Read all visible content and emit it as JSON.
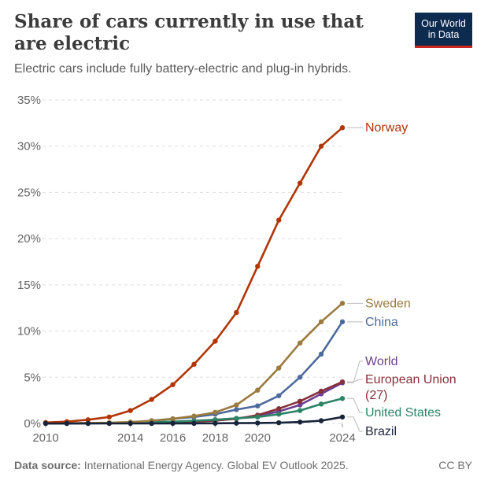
{
  "header": {
    "title": "Share of cars currently in use that are electric",
    "subtitle": "Electric cars include fully battery-electric and plug-in hybrids.",
    "logo_line1": "Our World",
    "logo_line2": "in Data"
  },
  "footer": {
    "source_label": "Data source:",
    "source_text": " International Energy Agency. Global EV Outlook 2025.",
    "license": "CC BY"
  },
  "colors": {
    "Norway": "#b13507",
    "Sweden": "#9a7a3f",
    "China": "#4c6a9c",
    "World": "#6d3e91",
    "European Union (27)": "#883039",
    "United States": "#2c8465",
    "Brazil": "#18243c",
    "grid": "#dddddd",
    "axis_text": "#666666"
  },
  "chart_data": {
    "type": "line",
    "title": "Share of cars currently in use that are electric",
    "subtitle": "Electric cars include fully battery-electric and plug-in hybrids.",
    "xlabel": "",
    "ylabel": "",
    "x_ticks": [
      "2010",
      "2014",
      "2016",
      "2018",
      "2020",
      "2024"
    ],
    "y_ticks": [
      "0%",
      "5%",
      "10%",
      "15%",
      "20%",
      "25%",
      "30%",
      "35%"
    ],
    "xlim": [
      2010,
      2024
    ],
    "ylim": [
      0,
      35
    ],
    "grid": "horizontal dashed",
    "legend": "right (labels at line ends)",
    "x": [
      2010,
      2011,
      2012,
      2013,
      2014,
      2015,
      2016,
      2017,
      2018,
      2019,
      2020,
      2021,
      2022,
      2023,
      2024
    ],
    "series": [
      {
        "name": "Norway",
        "values": [
          0.1,
          0.2,
          0.4,
          0.7,
          1.4,
          2.6,
          4.2,
          6.4,
          8.9,
          12,
          17,
          22,
          26,
          30,
          32
        ]
      },
      {
        "name": "Sweden",
        "values": [
          0.02,
          0.03,
          0.05,
          0.08,
          0.15,
          0.3,
          0.5,
          0.8,
          1.2,
          2,
          3.6,
          6,
          8.7,
          11,
          13
        ]
      },
      {
        "name": "China",
        "values": [
          0.01,
          0.01,
          0.02,
          0.04,
          0.1,
          0.3,
          0.5,
          0.7,
          1,
          1.5,
          1.9,
          3,
          5,
          7.5,
          11
        ]
      },
      {
        "name": "World",
        "values": [
          0.01,
          0.01,
          0.02,
          0.03,
          0.05,
          0.1,
          0.15,
          0.25,
          0.4,
          0.55,
          0.8,
          1.3,
          2,
          3.2,
          4.4
        ]
      },
      {
        "name": "European Union (27)",
        "values": [
          0.01,
          0.01,
          0.02,
          0.03,
          0.05,
          0.08,
          0.12,
          0.2,
          0.3,
          0.5,
          0.9,
          1.6,
          2.4,
          3.5,
          4.5
        ]
      },
      {
        "name": "United States",
        "values": [
          0.01,
          0.01,
          0.03,
          0.05,
          0.1,
          0.15,
          0.2,
          0.3,
          0.4,
          0.55,
          0.7,
          1,
          1.4,
          2.1,
          2.7
        ]
      },
      {
        "name": "Brazil",
        "values": [
          0,
          0,
          0,
          0,
          0,
          0,
          0.01,
          0.01,
          0.02,
          0.03,
          0.05,
          0.08,
          0.15,
          0.3,
          0.7
        ]
      }
    ],
    "end_labels": [
      {
        "series": "Norway",
        "lines": [
          "Norway"
        ]
      },
      {
        "series": "Sweden",
        "lines": [
          "Sweden"
        ]
      },
      {
        "series": "China",
        "lines": [
          "China"
        ]
      },
      {
        "series": "World",
        "lines": [
          "World"
        ]
      },
      {
        "series": "European Union (27)",
        "lines": [
          "European Union",
          "(27)"
        ]
      },
      {
        "series": "United States",
        "lines": [
          "United States"
        ]
      },
      {
        "series": "Brazil",
        "lines": [
          "Brazil"
        ]
      }
    ]
  }
}
